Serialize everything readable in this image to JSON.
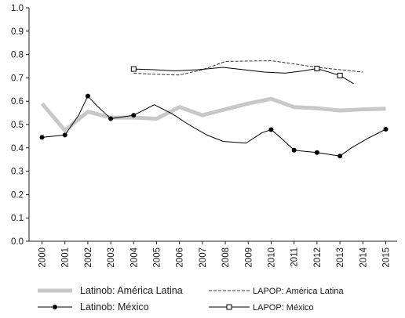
{
  "chart_data": {
    "type": "line",
    "title": "",
    "xlabel": "",
    "ylabel": "",
    "ylim": [
      0,
      1.0
    ],
    "yticks": [
      "0.0",
      "0.1",
      "0.2",
      "0.3",
      "0.4",
      "0.5",
      "0.6",
      "0.7",
      "0.8",
      "0.9",
      "1.0"
    ],
    "categories": [
      "2000",
      "2001",
      "2002",
      "2003",
      "2004",
      "2005",
      "2006",
      "2007",
      "2008",
      "2009",
      "2010",
      "2011",
      "2012",
      "2013",
      "2014",
      "2015"
    ],
    "grid": false,
    "legend_position": "bottom",
    "series": [
      {
        "name": "Latinob: América Latina",
        "style": "thick-gray",
        "color": "#c8c8c8",
        "values": [
          0.59,
          0.475,
          0.555,
          0.53,
          0.53,
          0.525,
          0.575,
          0.54,
          0.565,
          0.59,
          0.61,
          0.575,
          0.57,
          0.56,
          0.565,
          0.568
        ]
      },
      {
        "name": "LAPOP: América Latina",
        "style": "dashed",
        "color": "#333333",
        "values": [
          null,
          null,
          null,
          null,
          0.72,
          0.715,
          0.712,
          0.735,
          0.77,
          0.772,
          0.773,
          0.76,
          0.745,
          0.735,
          0.725,
          null
        ]
      },
      {
        "name": "Latinob: México",
        "style": "filled-circle",
        "color": "#000000",
        "values": [
          0.445,
          0.455,
          0.54,
          0.622,
          0.58,
          0.525,
          0.54,
          0.585,
          0.545,
          0.5,
          0.455,
          0.428,
          0.42,
          0.465,
          0.478,
          0.445,
          0.39,
          0.38,
          0.365,
          0.4,
          0.44,
          0.48
        ],
        "x": [
          2000,
          2001,
          2001.6,
          2002,
          2002.4,
          2003,
          2004,
          2004.9,
          2005.7,
          2006.4,
          2007.2,
          2007.9,
          2008.9,
          2009.6,
          2010,
          2010.4,
          2011,
          2012,
          2013,
          2013.5,
          2014.2,
          2015
        ]
      },
      {
        "name": "LAPOP: México",
        "style": "open-square",
        "color": "#000000",
        "values": [
          0.738,
          0.735,
          0.73,
          0.735,
          0.745,
          0.735,
          0.725,
          0.72,
          0.73,
          0.74,
          0.71,
          0.675
        ],
        "x": [
          2004,
          2004.9,
          2005.8,
          2006.8,
          2007.9,
          2008.8,
          2009.7,
          2010.6,
          2011.4,
          2012,
          2013,
          2013.6
        ]
      }
    ]
  },
  "legend": {
    "items": [
      {
        "label": "Latinob: América Latina",
        "style": "thick-gray"
      },
      {
        "label": "LAPOP: América Latina",
        "style": "dashed"
      },
      {
        "label": "Latinob: México",
        "style": "filled-circle"
      },
      {
        "label": "LAPOP: México",
        "style": "open-square"
      }
    ]
  }
}
